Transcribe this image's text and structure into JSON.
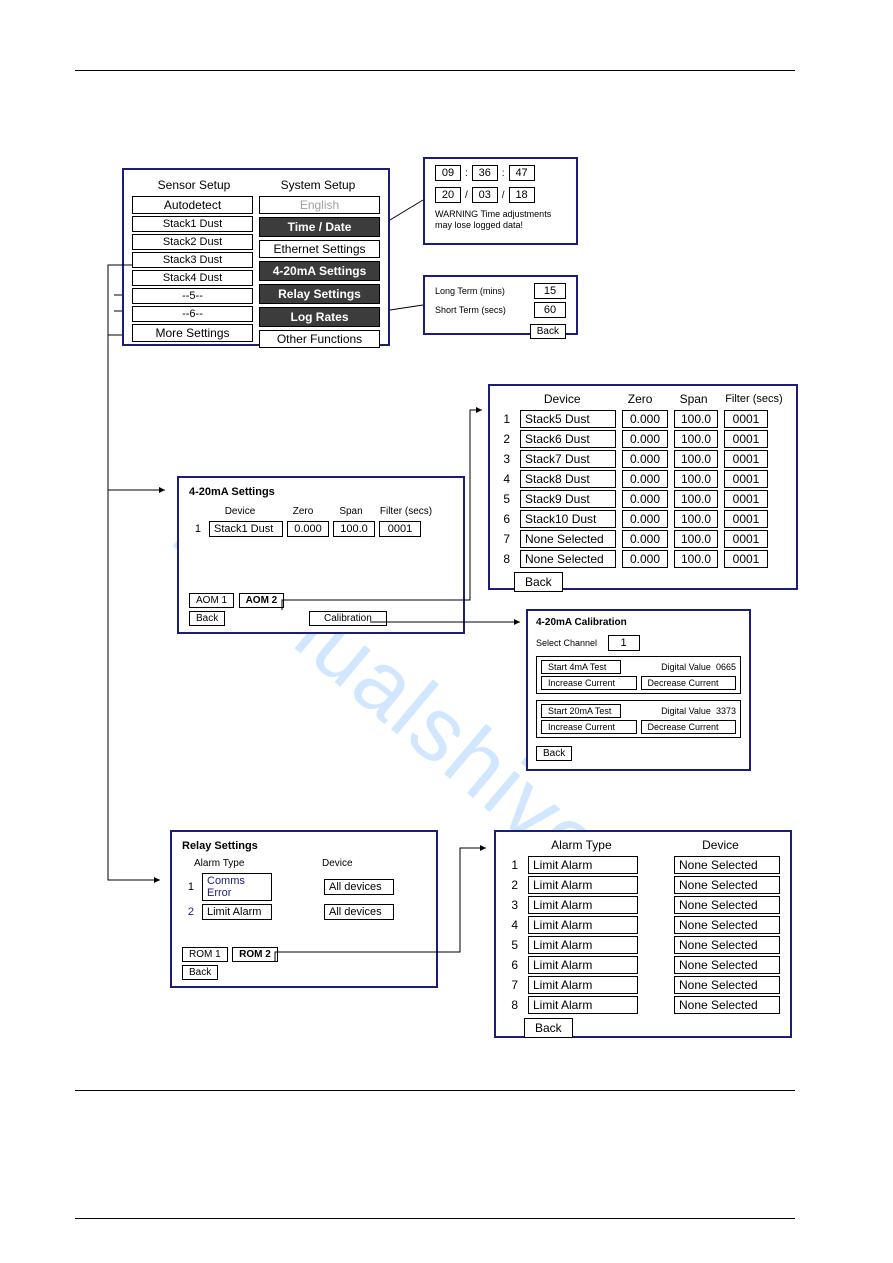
{
  "colors": {
    "border": "#1b1d7a",
    "dark_bg": "#3c3c3c",
    "dark_fg": "#ffffff",
    "gray_text": "#a0a0a0",
    "text": "#000000",
    "wm": "#4da3ff"
  },
  "watermark": "manualshive.com",
  "setup_panel": {
    "col1_header": "Sensor Setup",
    "col2_header": "System Setup",
    "col1": [
      {
        "label": "Autodetect",
        "style": "plain"
      },
      {
        "label": "Stack1 Dust",
        "style": "plain"
      },
      {
        "label": "Stack2 Dust",
        "style": "plain"
      },
      {
        "label": "Stack3 Dust",
        "style": "plain"
      },
      {
        "label": "Stack4 Dust",
        "style": "plain"
      },
      {
        "label": "--5--",
        "style": "plain"
      },
      {
        "label": "--6--",
        "style": "plain"
      },
      {
        "label": "More Settings",
        "style": "plain"
      }
    ],
    "col2": [
      {
        "label": "English",
        "style": "gray"
      },
      {
        "label": "Time / Date",
        "style": "dark"
      },
      {
        "label": "Ethernet Settings",
        "style": "plain"
      },
      {
        "label": "4-20mA Settings",
        "style": "dark"
      },
      {
        "label": "Relay Settings",
        "style": "dark"
      },
      {
        "label": "Log Rates",
        "style": "dark"
      },
      {
        "label": "Other Functions",
        "style": "plain"
      }
    ]
  },
  "time_panel": {
    "time": {
      "hh": "09",
      "mm": "36",
      "ss": "47",
      "sep": ":"
    },
    "date": {
      "dd": "20",
      "mo": "03",
      "yy": "18",
      "sep": "/"
    },
    "warning": "WARNING Time adjustments may lose logged data!"
  },
  "lograte_panel": {
    "rows": [
      {
        "label": "Long Term (mins)",
        "value": "15"
      },
      {
        "label": "Short Term (secs)",
        "value": "60"
      }
    ],
    "back": "Back"
  },
  "ma_settings_panel": {
    "title": "4-20mA Settings",
    "headers": {
      "device": "Device",
      "zero": "Zero",
      "span": "Span",
      "filter": "Filter (secs)"
    },
    "rows": [
      {
        "n": "1",
        "device": "Stack1 Dust",
        "zero": "0.000",
        "span": "100.0",
        "filter": "0001"
      }
    ],
    "tabs": {
      "a": "AOM 1",
      "b": "AOM 2"
    },
    "back": "Back",
    "calib": "Calibration"
  },
  "ma_big_panel": {
    "headers": {
      "device": "Device",
      "zero": "Zero",
      "span": "Span",
      "filter": "Filter (secs)"
    },
    "rows": [
      {
        "n": "1",
        "device": "Stack5 Dust",
        "zero": "0.000",
        "span": "100.0",
        "filter": "0001"
      },
      {
        "n": "2",
        "device": "Stack6 Dust",
        "zero": "0.000",
        "span": "100.0",
        "filter": "0001"
      },
      {
        "n": "3",
        "device": "Stack7 Dust",
        "zero": "0.000",
        "span": "100.0",
        "filter": "0001"
      },
      {
        "n": "4",
        "device": "Stack8 Dust",
        "zero": "0.000",
        "span": "100.0",
        "filter": "0001"
      },
      {
        "n": "5",
        "device": "Stack9 Dust",
        "zero": "0.000",
        "span": "100.0",
        "filter": "0001"
      },
      {
        "n": "6",
        "device": "Stack10 Dust",
        "zero": "0.000",
        "span": "100.0",
        "filter": "0001"
      },
      {
        "n": "7",
        "device": "None Selected",
        "zero": "0.000",
        "span": "100.0",
        "filter": "0001"
      },
      {
        "n": "8",
        "device": "None Selected",
        "zero": "0.000",
        "span": "100.0",
        "filter": "0001"
      }
    ],
    "back": "Back"
  },
  "calib_panel": {
    "title": "4-20mA Calibration",
    "select_label": "Select Channel",
    "channel": "1",
    "group1": {
      "start": "Start 4mA Test",
      "dv_label": "Digital Value",
      "dv": "0665",
      "inc": "Increase Current",
      "dec": "Decrease Current"
    },
    "group2": {
      "start": "Start 20mA Test",
      "dv_label": "Digital Value",
      "dv": "3373",
      "inc": "Increase Current",
      "dec": "Decrease Current"
    },
    "back": "Back"
  },
  "relay_panel": {
    "title": "Relay  Settings",
    "h1": "Alarm Type",
    "h2": "Device",
    "rows": [
      {
        "n": "1",
        "alarm": "Comms Error",
        "dev": "All devices"
      },
      {
        "n": "2",
        "alarm": "Limit Alarm",
        "dev": "All devices"
      }
    ],
    "tabs": {
      "a": "ROM 1",
      "b": "ROM 2"
    },
    "back": "Back"
  },
  "relay_big_panel": {
    "h1": "Alarm Type",
    "h2": "Device",
    "rows": [
      {
        "n": "1",
        "alarm": "Limit Alarm",
        "dev": "None Selected"
      },
      {
        "n": "2",
        "alarm": "Limit Alarm",
        "dev": "None Selected"
      },
      {
        "n": "3",
        "alarm": "Limit Alarm",
        "dev": "None Selected"
      },
      {
        "n": "4",
        "alarm": "Limit Alarm",
        "dev": "None Selected"
      },
      {
        "n": "5",
        "alarm": "Limit Alarm",
        "dev": "None Selected"
      },
      {
        "n": "6",
        "alarm": "Limit Alarm",
        "dev": "None Selected"
      },
      {
        "n": "7",
        "alarm": "Limit Alarm",
        "dev": "None Selected"
      },
      {
        "n": "8",
        "alarm": "Limit Alarm",
        "dev": "None Selected"
      }
    ],
    "back": "Back"
  }
}
